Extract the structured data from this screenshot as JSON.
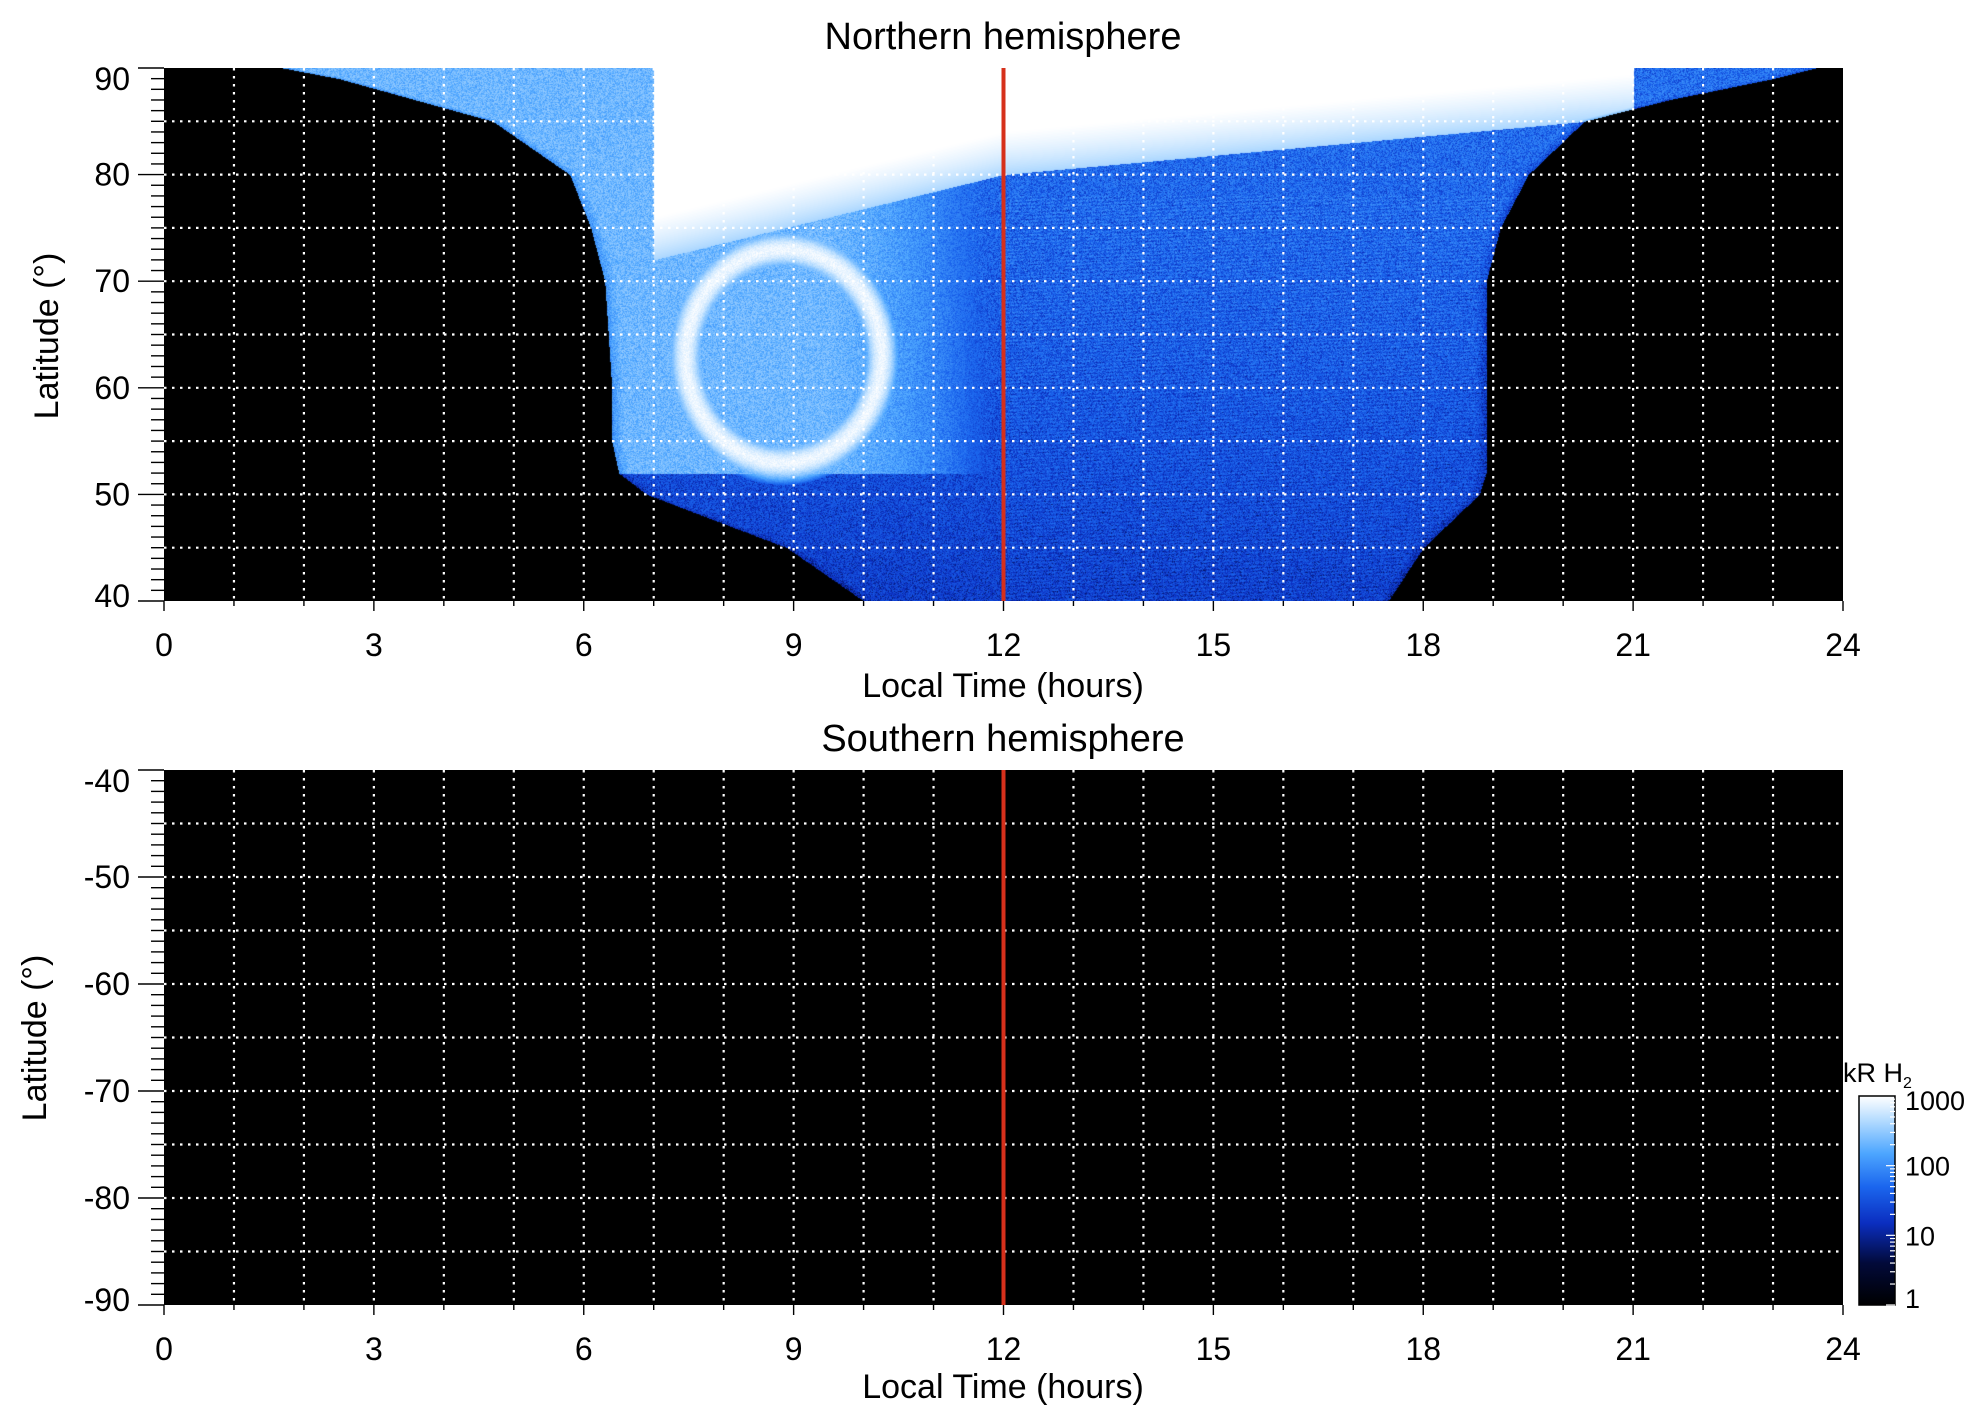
{
  "chart_data": [
    {
      "type": "heatmap",
      "title": "Northern hemisphere",
      "xlabel": "Local Time (hours)",
      "ylabel": "Latitude (°)",
      "xlim": [
        0,
        24
      ],
      "ylim": [
        40,
        90
      ],
      "xticks": [
        "0",
        "3",
        "6",
        "9",
        "12",
        "15",
        "18",
        "21",
        "24"
      ],
      "yticks": [
        "40",
        "50",
        "60",
        "70",
        "80",
        "90"
      ],
      "grid": true,
      "reference_line": {
        "x": 12,
        "color": "#d6301b"
      },
      "coverage": [
        {
          "lat": 40,
          "lt_range": [
            10.0,
            17.5
          ]
        },
        {
          "lat": 45,
          "lt_range": [
            8.9,
            18.0
          ]
        },
        {
          "lat": 50,
          "lt_range": [
            6.9,
            18.8
          ]
        },
        {
          "lat": 52,
          "lt_range": [
            6.5,
            18.9
          ]
        },
        {
          "lat": 55,
          "lt_range": [
            6.4,
            18.9
          ]
        },
        {
          "lat": 60,
          "lt_range": [
            6.4,
            18.9
          ]
        },
        {
          "lat": 65,
          "lt_range": [
            6.35,
            18.9
          ]
        },
        {
          "lat": 70,
          "lt_range": [
            6.3,
            18.9
          ]
        },
        {
          "lat": 75,
          "lt_range": [
            6.1,
            19.1
          ]
        },
        {
          "lat": 80,
          "lt_range": [
            5.8,
            19.5
          ]
        },
        {
          "lat": 85,
          "lt_range": [
            4.7,
            20.3
          ]
        },
        {
          "lat": 87,
          "lt_range": [
            3.6,
            21.5
          ]
        },
        {
          "lat": 89,
          "lt_range": [
            2.5,
            23.0
          ]
        },
        {
          "lat": 90,
          "lt_range": [
            1.7,
            23.6
          ]
        }
      ],
      "aurora_oval": {
        "center_lt": 8.85,
        "center_lat": 63,
        "radius_lt": 1.4,
        "radius_lat": 10,
        "peak_kR": 1000
      },
      "dayside_bright_region": {
        "lat_min": 80,
        "lt_range": [
          7.0,
          21.0
        ],
        "peak_kR": 1000
      },
      "background_kR": 20
    },
    {
      "type": "heatmap",
      "title": "Southern hemisphere",
      "xlabel": "Local Time (hours)",
      "ylabel": "Latitude (°)",
      "xlim": [
        0,
        24
      ],
      "ylim": [
        -90,
        -40
      ],
      "xticks": [
        "0",
        "3",
        "6",
        "9",
        "12",
        "15",
        "18",
        "21",
        "24"
      ],
      "yticks": [
        "-40",
        "-50",
        "-60",
        "-70",
        "-80",
        "-90"
      ],
      "grid": true,
      "reference_line": {
        "x": 12,
        "color": "#d6301b"
      },
      "coverage": []
    }
  ],
  "colorbar": {
    "label": "kR H",
    "label_subscript": "2",
    "scale": "log",
    "range": [
      1,
      1000
    ],
    "ticks": [
      "1",
      "10",
      "100",
      "1000"
    ],
    "colormap_stops": [
      {
        "v": 1,
        "color": "#000000"
      },
      {
        "v": 4,
        "color": "#020a3a"
      },
      {
        "v": 15,
        "color": "#0b2ec0"
      },
      {
        "v": 50,
        "color": "#1b66ee"
      },
      {
        "v": 150,
        "color": "#4da6ff"
      },
      {
        "v": 450,
        "color": "#b5dcff"
      },
      {
        "v": 1000,
        "color": "#ffffff"
      }
    ]
  }
}
